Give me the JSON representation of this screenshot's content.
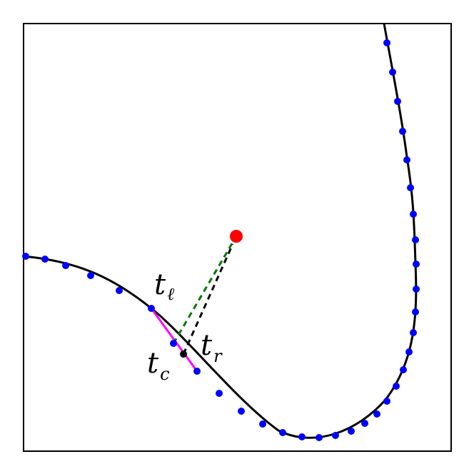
{
  "labels": {
    "t_left": {
      "main": "t",
      "sub": "ℓ"
    },
    "t_center": {
      "main": "t",
      "sub": "c"
    },
    "t_right": {
      "main": "t",
      "sub": "r"
    }
  },
  "colors": {
    "frame": "#000000",
    "curve": "#000000",
    "sample_points": "#0000ff",
    "query_point": "#ff0000",
    "bracket_segment": "#ff00ff",
    "green_dashed": "#007700",
    "black_dashed": "#000000",
    "closest_point": "#000000"
  }
}
